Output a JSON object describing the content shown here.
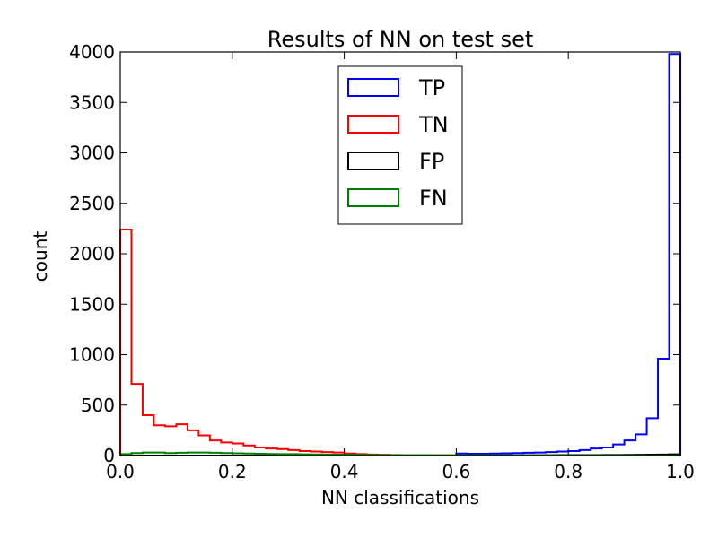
{
  "chart_data": {
    "type": "histogram",
    "title": "Results of NN on test set",
    "xlabel": "NN classifications",
    "ylabel": "count",
    "xlim": [
      0.0,
      1.0
    ],
    "ylim": [
      0,
      4000
    ],
    "xticks": [
      0.0,
      0.2,
      0.4,
      0.6,
      0.8,
      1.0
    ],
    "xtick_labels": [
      "0.0",
      "0.2",
      "0.4",
      "0.6",
      "0.8",
      "1.0"
    ],
    "yticks": [
      0,
      500,
      1000,
      1500,
      2000,
      2500,
      3000,
      3500,
      4000
    ],
    "ytick_labels": [
      "0",
      "500",
      "1000",
      "1500",
      "2000",
      "2500",
      "3000",
      "3500",
      "4000"
    ],
    "bins": 50,
    "grid": false,
    "legend_position": "top-center",
    "series": [
      {
        "name": "TP",
        "color": "#0000ff",
        "values": [
          0,
          0,
          0,
          0,
          0,
          0,
          0,
          0,
          0,
          0,
          0,
          0,
          0,
          0,
          0,
          0,
          0,
          0,
          0,
          0,
          0,
          0,
          0,
          0,
          0,
          0,
          0,
          0,
          0,
          0,
          20,
          18,
          18,
          20,
          22,
          25,
          28,
          30,
          35,
          40,
          45,
          55,
          70,
          80,
          110,
          150,
          210,
          370,
          960,
          3980
        ]
      },
      {
        "name": "TN",
        "color": "#ff0000",
        "values": [
          2240,
          710,
          400,
          300,
          290,
          310,
          250,
          200,
          150,
          130,
          120,
          100,
          80,
          70,
          65,
          55,
          45,
          40,
          35,
          30,
          20,
          15,
          10,
          8,
          6,
          5,
          4,
          3,
          2,
          2,
          1,
          1,
          1,
          1,
          1,
          0,
          0,
          0,
          0,
          0,
          0,
          0,
          0,
          0,
          0,
          0,
          0,
          0,
          0,
          0
        ]
      },
      {
        "name": "FP",
        "color": "#000000",
        "values": [
          0,
          0,
          0,
          0,
          0,
          0,
          0,
          0,
          0,
          0,
          0,
          0,
          0,
          0,
          0,
          0,
          0,
          0,
          0,
          0,
          0,
          0,
          0,
          0,
          0,
          0,
          0,
          0,
          0,
          0,
          1,
          1,
          1,
          2,
          2,
          2,
          3,
          3,
          3,
          4,
          4,
          5,
          5,
          6,
          6,
          7,
          8,
          9,
          10,
          12
        ]
      },
      {
        "name": "FN",
        "color": "#008000",
        "values": [
          15,
          25,
          30,
          30,
          25,
          28,
          30,
          30,
          28,
          25,
          22,
          20,
          18,
          16,
          15,
          14,
          12,
          11,
          10,
          9,
          8,
          7,
          6,
          5,
          5,
          4,
          4,
          3,
          3,
          3,
          2,
          2,
          2,
          1,
          1,
          1,
          1,
          1,
          1,
          1,
          0,
          0,
          0,
          0,
          0,
          0,
          0,
          0,
          0,
          0
        ]
      }
    ]
  }
}
